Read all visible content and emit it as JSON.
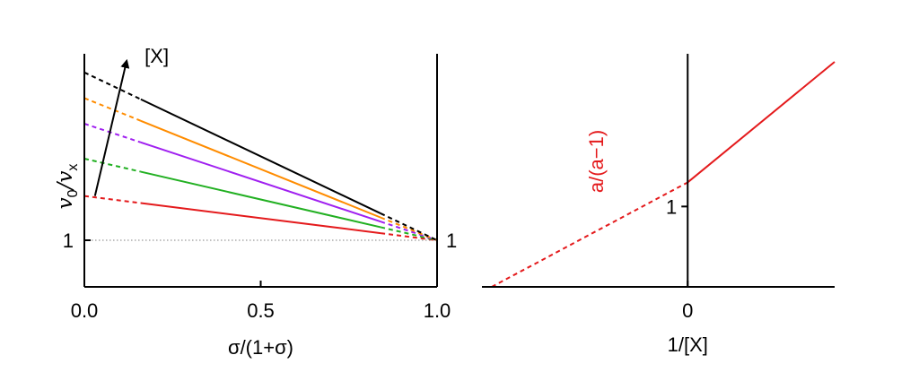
{
  "chart_data": [
    {
      "type": "line",
      "xlabel": "σ/(1+σ)",
      "ylabel_main": "v",
      "ylabel_sub0": "0",
      "ylabel_slash": "/",
      "ylabel_main2": "v",
      "ylabel_sub1": "x",
      "xlim": [
        0,
        1
      ],
      "ylim": [
        0,
        5
      ],
      "x_ticks": [
        {
          "value": 0.0,
          "label": "0.0"
        },
        {
          "value": 0.5,
          "label": "0.5"
        },
        {
          "value": 1.0,
          "label": "1.0"
        }
      ],
      "y_ticks": [
        {
          "value": 1,
          "label": "1"
        }
      ],
      "right_axis_label": "1",
      "reference_line": {
        "y": 1,
        "style": "dotted",
        "color": "#808080"
      },
      "arrow": {
        "label": "[X]",
        "from": {
          "x": 0.03,
          "y": 1.95
        },
        "to": {
          "x": 0.12,
          "y": 4.85
        }
      },
      "solid_range": [
        0.16,
        0.84
      ],
      "series": [
        {
          "color": "#e41a1c",
          "values": [
            {
              "x": 0,
              "y": 1.95
            },
            {
              "x": 1,
              "y": 1
            }
          ]
        },
        {
          "color": "#22b022",
          "values": [
            {
              "x": 0,
              "y": 2.75
            },
            {
              "x": 1,
              "y": 1
            }
          ]
        },
        {
          "color": "#a020f0",
          "values": [
            {
              "x": 0,
              "y": 3.5
            },
            {
              "x": 1,
              "y": 1
            }
          ]
        },
        {
          "color": "#ff8c00",
          "values": [
            {
              "x": 0,
              "y": 4.05
            },
            {
              "x": 1,
              "y": 1
            }
          ]
        },
        {
          "color": "#000000",
          "values": [
            {
              "x": 0,
              "y": 4.6
            },
            {
              "x": 1,
              "y": 1
            }
          ]
        }
      ]
    },
    {
      "type": "line",
      "xlabel": "1/[X]",
      "xlim": [
        -1.05,
        0.75
      ],
      "ylim": [
        0,
        2.9
      ],
      "x_ticks": [
        {
          "value": 0,
          "label": "0"
        }
      ],
      "y_ticks": [
        {
          "value": 1,
          "label": "1"
        }
      ],
      "series": [
        {
          "name": "a/(a−1)",
          "color": "#e41a1c",
          "dashed_part": [
            {
              "x": -1.0,
              "y": 0
            },
            {
              "x": 0,
              "y": 1.3
            }
          ],
          "solid_part": [
            {
              "x": 0,
              "y": 1.3
            },
            {
              "x": 0.75,
              "y": 2.8
            }
          ]
        }
      ]
    }
  ]
}
